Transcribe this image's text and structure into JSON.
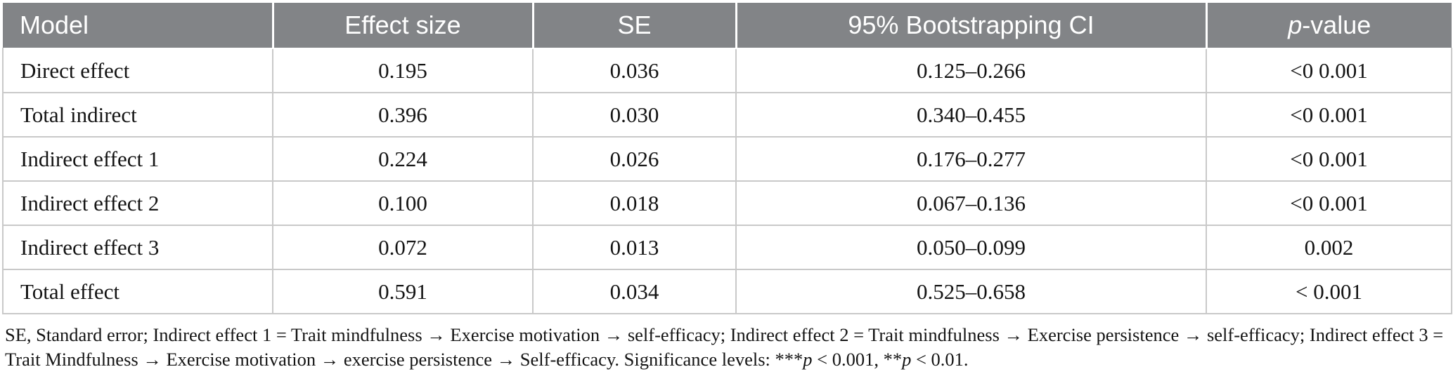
{
  "colors": {
    "header_bg": "#828487",
    "header_text": "#ffffff",
    "body_text": "#141414",
    "grid_border": "#c9c9c9",
    "background": "#ffffff"
  },
  "table": {
    "header": {
      "model": "Model",
      "effect_size": "Effect size",
      "se": "SE",
      "ci": "95% Bootstrapping CI",
      "p_value_italic": "p",
      "p_value_rest": "-value"
    },
    "rows": [
      [
        "Direct effect",
        "0.195",
        "0.036",
        "0.125–0.266",
        "<0 0.001"
      ],
      [
        "Total indirect",
        "0.396",
        "0.030",
        "0.340–0.455",
        "<0 0.001"
      ],
      [
        "Indirect effect 1",
        "0.224",
        "0.026",
        "0.176–0.277",
        "<0 0.001"
      ],
      [
        "Indirect effect 2",
        "0.100",
        "0.018",
        "0.067–0.136",
        "<0 0.001"
      ],
      [
        "Indirect effect 3",
        "0.072",
        "0.013",
        "0.050–0.099",
        "0.002"
      ],
      [
        "Total effect",
        "0.591",
        "0.034",
        "0.525–0.658",
        "< 0.001"
      ]
    ]
  },
  "footnote": {
    "segments": [
      {
        "t": "SE, Standard error; Indirect effect 1 = Trait mindfulness → Exercise motivation → self-efficacy; Indirect effect 2 = Trait mindfulness → Exercise persistence → self-efficacy; Indirect effect 3 = Trait Mindfulness → Exercise motivation → exercise persistence → Self-efficacy. Significance levels: ***",
        "italic": false
      },
      {
        "t": "p",
        "italic": true
      },
      {
        "t": " < 0.001, **",
        "italic": false
      },
      {
        "t": "p",
        "italic": true
      },
      {
        "t": " < 0.01.",
        "italic": false
      }
    ]
  }
}
